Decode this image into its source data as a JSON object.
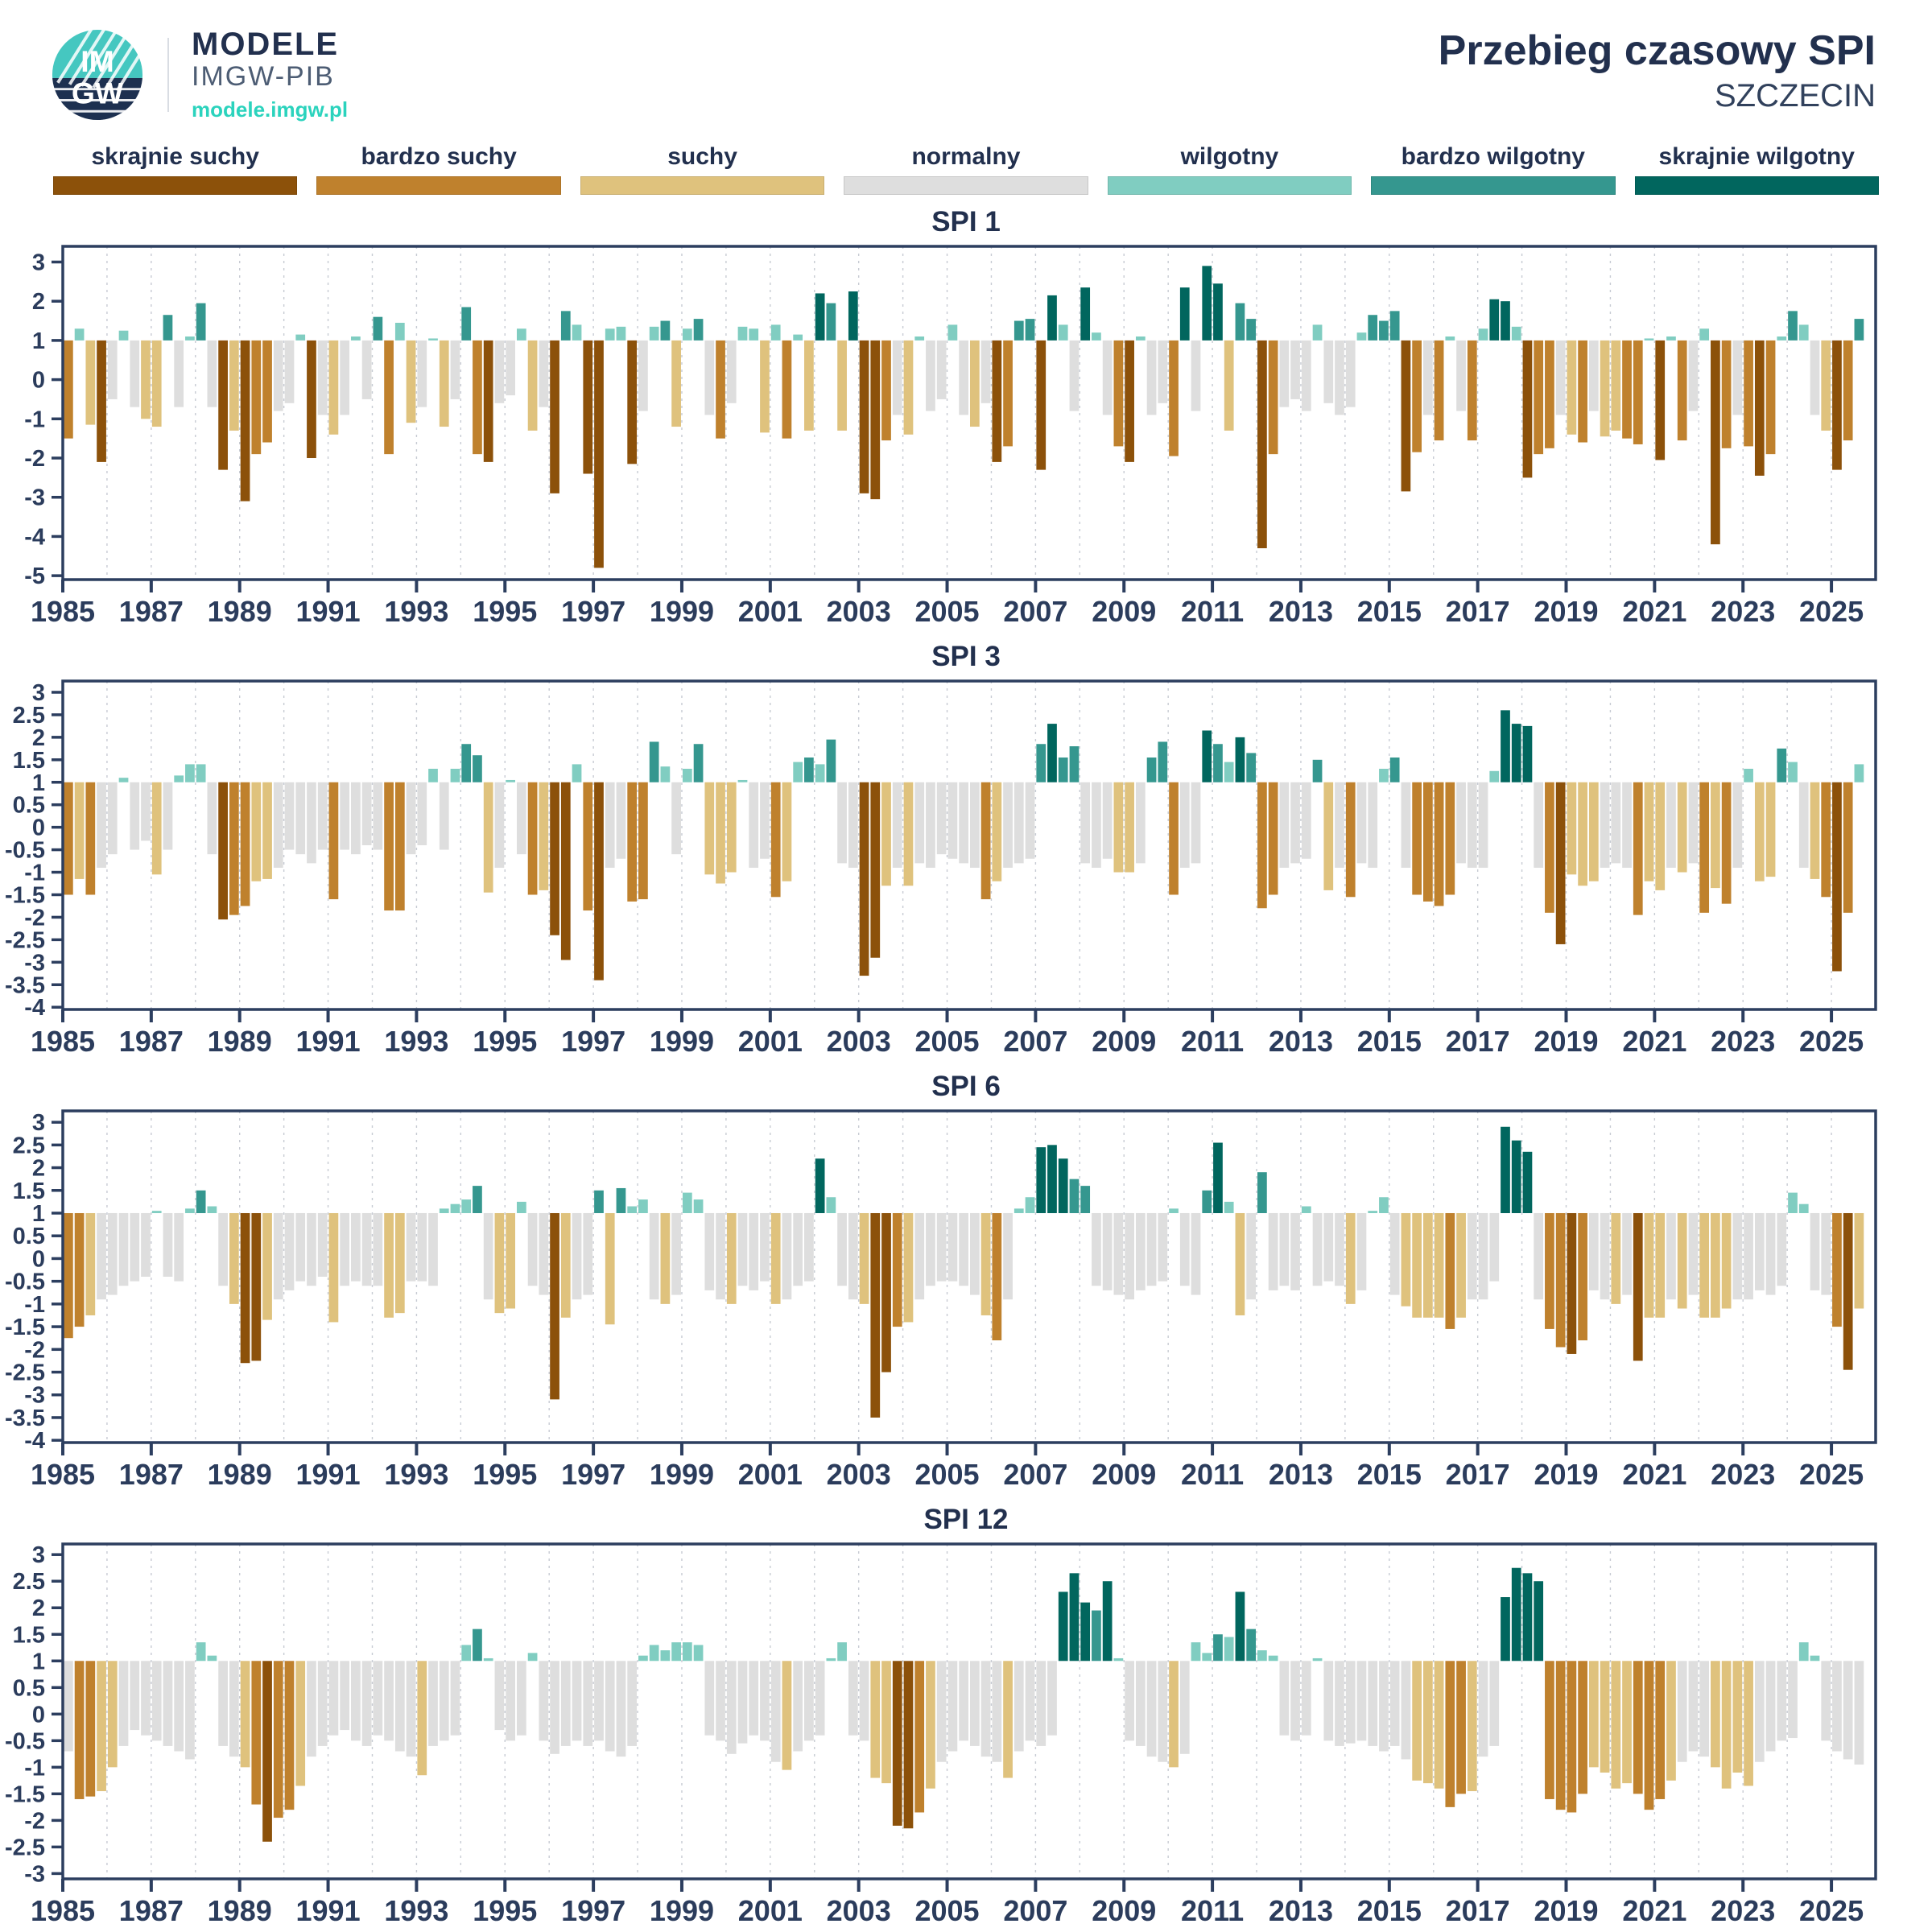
{
  "header": {
    "logo_text_top": "IM",
    "logo_text_bottom": "GW",
    "brand_name": "MODELE",
    "brand_org": "IMGW-PIB",
    "brand_url": "modele.imgw.pl",
    "title": "Przebieg czasowy SPI",
    "subtitle": "SZCZECIN"
  },
  "colors": {
    "navy_text": "#22304e",
    "axis_frame": "#2c3e5f",
    "gridline": "#c7cbd3",
    "brand_teal": "#2bd3bd",
    "logo_top_teal": "#45c7c0",
    "logo_bottom_navy": "#1d3050"
  },
  "legend": [
    {
      "label": "skrajnie suchy",
      "color": "#8c510a",
      "range": [
        -99,
        -2
      ]
    },
    {
      "label": "bardzo suchy",
      "color": "#bf812d",
      "range": [
        -2,
        -1.5
      ]
    },
    {
      "label": "suchy",
      "color": "#dfc27d",
      "range": [
        -1.5,
        -1
      ]
    },
    {
      "label": "normalny",
      "color": "#dedede",
      "range": [
        -1,
        1
      ]
    },
    {
      "label": "wilgotny",
      "color": "#80cdc1",
      "range": [
        1,
        1.5
      ]
    },
    {
      "label": "bardzo wilgotny",
      "color": "#35978f",
      "range": [
        1.5,
        2
      ]
    },
    {
      "label": "skrajnie wilgotny",
      "color": "#01665e",
      "range": [
        2,
        99
      ]
    }
  ],
  "chart_data": {
    "type": "bar",
    "xlabel": "",
    "ylabel": "SPI",
    "x_start": 1985,
    "x_end": 2025.75,
    "x_axis_max": 2026,
    "points_per_year": 4,
    "sampling": "quarterly approximation of monthly bars",
    "baseline": 1,
    "grid": "vertical dashed yearly",
    "legend_position": "top",
    "x_ticks": [
      1985,
      1987,
      1989,
      1991,
      1993,
      1995,
      1997,
      1999,
      2001,
      2003,
      2005,
      2007,
      2009,
      2011,
      2013,
      2015,
      2017,
      2019,
      2021,
      2023,
      2025
    ],
    "charts": [
      {
        "title": "SPI 1",
        "y_ticks": [
          3,
          2,
          1,
          0,
          -1,
          -2,
          -3,
          -4,
          -5
        ],
        "y_top": 3.4,
        "y_bottom": -5.1,
        "values": [
          -1.5,
          1.3,
          -1.15,
          -2.1,
          -0.5,
          1.25,
          -0.7,
          -1.0,
          -1.2,
          1.65,
          -0.7,
          1.1,
          1.95,
          -0.7,
          -2.3,
          -1.3,
          -3.1,
          -1.9,
          -1.6,
          -0.8,
          -0.6,
          1.15,
          -2.0,
          -0.9,
          -1.4,
          -0.9,
          1.1,
          -0.5,
          1.6,
          -1.9,
          1.45,
          -1.1,
          -0.7,
          1.05,
          -1.2,
          -0.5,
          1.85,
          -1.9,
          -2.1,
          -0.6,
          -0.4,
          1.3,
          -1.3,
          -0.7,
          -2.9,
          1.75,
          1.4,
          -2.4,
          -4.8,
          1.3,
          1.35,
          -2.15,
          -0.8,
          1.35,
          1.5,
          -1.2,
          1.3,
          1.55,
          -0.9,
          -1.5,
          -0.6,
          1.35,
          1.3,
          -1.35,
          1.4,
          -1.5,
          1.15,
          -1.3,
          2.2,
          1.95,
          -1.3,
          2.25,
          -2.9,
          -3.05,
          -1.55,
          -0.9,
          -1.4,
          1.1,
          -0.8,
          -0.5,
          1.4,
          -0.9,
          -1.2,
          -0.6,
          -2.1,
          -1.7,
          1.5,
          1.55,
          -2.3,
          2.15,
          1.4,
          -0.8,
          2.35,
          1.2,
          -0.9,
          -1.7,
          -2.1,
          1.1,
          -0.9,
          -0.6,
          -1.95,
          2.35,
          -0.8,
          2.9,
          2.45,
          -1.3,
          1.95,
          1.55,
          -4.3,
          -1.9,
          -0.7,
          -0.5,
          -0.8,
          1.4,
          -0.6,
          -0.9,
          -0.7,
          1.2,
          1.65,
          1.5,
          1.75,
          -2.85,
          -1.85,
          -0.9,
          -1.55,
          1.1,
          -0.8,
          -1.55,
          1.3,
          2.05,
          2.0,
          1.35,
          -2.5,
          -1.9,
          -1.75,
          -0.9,
          -1.4,
          -1.6,
          -0.8,
          -1.45,
          -1.3,
          -1.5,
          -1.65,
          1.05,
          -2.05,
          1.1,
          -1.55,
          -0.8,
          1.3,
          -4.2,
          -1.75,
          -0.9,
          -1.7,
          -2.45,
          -1.9,
          1.1,
          1.75,
          1.4,
          -0.9,
          -1.3,
          -2.3,
          -1.55,
          1.55
        ]
      },
      {
        "title": "SPI 3",
        "y_ticks": [
          3,
          2.5,
          2,
          1.5,
          1,
          0.5,
          0,
          -0.5,
          -1,
          -1.5,
          -2,
          -2.5,
          -3,
          -3.5,
          -4
        ],
        "y_top": 3.25,
        "y_bottom": -4.05,
        "values": [
          -1.5,
          -1.15,
          -1.5,
          -0.9,
          -0.6,
          1.1,
          -0.5,
          -0.3,
          -1.05,
          -0.5,
          1.15,
          1.4,
          1.4,
          -0.6,
          -2.05,
          -1.95,
          -1.75,
          -1.2,
          -1.15,
          -0.9,
          -0.5,
          -0.6,
          -0.8,
          -0.5,
          -1.6,
          -0.5,
          -0.6,
          -0.4,
          -0.5,
          -1.85,
          -1.85,
          -0.6,
          -0.4,
          1.3,
          -0.5,
          1.3,
          1.85,
          1.6,
          -1.45,
          -0.9,
          1.05,
          -0.6,
          -1.5,
          -1.4,
          -2.4,
          -2.95,
          1.4,
          -1.85,
          -3.4,
          -0.9,
          -0.7,
          -1.65,
          -1.6,
          1.9,
          1.35,
          -0.6,
          1.3,
          1.85,
          -1.05,
          -1.25,
          -1.0,
          1.05,
          -0.9,
          -0.7,
          -1.55,
          -1.2,
          1.45,
          1.55,
          1.4,
          1.95,
          -0.8,
          -0.9,
          -3.3,
          -2.9,
          -1.3,
          -0.9,
          -1.3,
          -0.8,
          -0.9,
          -0.6,
          -0.7,
          -0.8,
          -0.9,
          -1.6,
          -1.2,
          -0.9,
          -0.8,
          -0.7,
          1.85,
          2.3,
          1.55,
          1.8,
          -0.8,
          -0.9,
          -0.7,
          -1.0,
          -1.0,
          -0.8,
          1.55,
          1.9,
          -1.5,
          -0.9,
          -0.8,
          2.15,
          1.85,
          1.45,
          2.0,
          1.65,
          -1.8,
          -1.5,
          -0.9,
          -0.8,
          -0.7,
          1.5,
          -1.4,
          -0.9,
          -1.55,
          -0.8,
          -0.9,
          1.3,
          1.55,
          -0.9,
          -1.5,
          -1.65,
          -1.75,
          -1.5,
          -0.8,
          -0.9,
          -0.9,
          1.25,
          2.6,
          2.3,
          2.25,
          -0.9,
          -1.9,
          -2.6,
          -1.05,
          -1.3,
          -1.2,
          -0.9,
          -0.8,
          -0.9,
          -1.95,
          -1.2,
          -1.4,
          -0.9,
          -1.0,
          -0.8,
          -1.9,
          -1.35,
          -1.7,
          -0.9,
          1.3,
          -1.2,
          -1.1,
          1.75,
          1.45,
          -0.9,
          -1.15,
          -1.55,
          -3.2,
          -1.9,
          1.4
        ]
      },
      {
        "title": "SPI 6",
        "y_ticks": [
          3,
          2.5,
          2,
          1.5,
          1,
          0.5,
          0,
          -0.5,
          -1,
          -1.5,
          -2,
          -2.5,
          -3,
          -3.5,
          -4
        ],
        "y_top": 3.25,
        "y_bottom": -4.05,
        "values": [
          -1.75,
          -1.5,
          -1.25,
          -0.9,
          -0.8,
          -0.6,
          -0.5,
          -0.4,
          1.05,
          -0.4,
          -0.5,
          1.1,
          1.5,
          1.15,
          -0.6,
          -1.0,
          -2.3,
          -2.25,
          -1.35,
          -0.9,
          -0.7,
          -0.5,
          -0.6,
          -0.4,
          -1.4,
          -0.6,
          -0.5,
          -0.6,
          -0.6,
          -1.3,
          -1.2,
          -0.5,
          -0.5,
          -0.6,
          1.1,
          1.2,
          1.3,
          1.6,
          -0.9,
          -1.2,
          -1.1,
          1.25,
          -0.6,
          -0.8,
          -3.1,
          -1.3,
          -0.9,
          -0.8,
          1.5,
          -1.45,
          1.55,
          1.15,
          1.3,
          -0.9,
          -1.0,
          -0.8,
          1.45,
          1.3,
          -0.7,
          -0.9,
          -1.0,
          -0.6,
          -0.7,
          -0.5,
          -1.0,
          -0.9,
          -0.6,
          -0.5,
          2.2,
          1.35,
          -0.6,
          -0.9,
          -1.0,
          -3.5,
          -2.5,
          -1.5,
          -1.4,
          -0.9,
          -0.6,
          -0.5,
          -0.5,
          -0.6,
          -0.8,
          -1.25,
          -1.8,
          -0.9,
          1.1,
          1.35,
          2.45,
          2.5,
          2.2,
          1.75,
          1.6,
          -0.6,
          -0.7,
          -0.8,
          -0.9,
          -0.7,
          -0.6,
          -0.5,
          1.1,
          -0.6,
          -0.8,
          1.5,
          2.55,
          1.25,
          -1.25,
          -0.9,
          1.9,
          -0.7,
          -0.6,
          -0.7,
          1.15,
          -0.6,
          -0.5,
          -0.6,
          -1.0,
          -0.7,
          1.05,
          1.35,
          -0.8,
          -1.05,
          -1.3,
          -1.3,
          -1.3,
          -1.55,
          -1.3,
          -0.9,
          -0.9,
          -0.5,
          2.9,
          2.6,
          2.35,
          -0.9,
          -1.55,
          -1.95,
          -2.1,
          -1.8,
          -0.7,
          -0.9,
          -1.0,
          -0.8,
          -2.25,
          -1.3,
          -1.3,
          -0.9,
          -1.1,
          -0.8,
          -1.3,
          -1.3,
          -1.1,
          -0.9,
          -0.9,
          -0.7,
          -0.8,
          -0.6,
          1.45,
          1.2,
          -0.7,
          -0.8,
          -1.5,
          -2.45,
          -1.1
        ]
      },
      {
        "title": "SPI 12",
        "y_ticks": [
          3,
          2.5,
          2,
          1.5,
          1,
          0.5,
          0,
          -0.5,
          -1,
          -1.5,
          -2,
          -2.5,
          -3
        ],
        "y_top": 3.2,
        "y_bottom": -3.1,
        "values": [
          -0.7,
          -1.6,
          -1.55,
          -1.45,
          -1.0,
          -0.6,
          -0.3,
          -0.4,
          -0.5,
          -0.6,
          -0.7,
          -0.85,
          1.35,
          1.1,
          -0.6,
          -0.8,
          -1.0,
          -1.7,
          -2.4,
          -1.95,
          -1.8,
          -1.35,
          -0.8,
          -0.6,
          -0.4,
          -0.3,
          -0.5,
          -0.6,
          -0.4,
          -0.5,
          -0.7,
          -0.8,
          -1.15,
          -0.6,
          -0.5,
          -0.4,
          1.3,
          1.6,
          1.05,
          -0.3,
          -0.5,
          -0.4,
          1.15,
          -0.5,
          -0.75,
          -0.6,
          -0.5,
          -0.6,
          -0.5,
          -0.7,
          -0.8,
          -0.6,
          1.1,
          1.3,
          1.2,
          1.35,
          1.35,
          1.3,
          -0.4,
          -0.5,
          -0.75,
          -0.55,
          -0.4,
          -0.5,
          -0.9,
          -1.05,
          -0.7,
          -0.5,
          -0.4,
          1.05,
          1.35,
          -0.4,
          -0.5,
          -1.2,
          -1.3,
          -2.1,
          -2.15,
          -1.85,
          -1.4,
          -0.9,
          -0.7,
          -0.5,
          -0.6,
          -0.8,
          -0.9,
          -1.2,
          -0.7,
          -0.5,
          -0.6,
          -0.4,
          2.3,
          2.65,
          2.1,
          1.95,
          2.5,
          1.05,
          -0.5,
          -0.6,
          -0.8,
          -0.9,
          -1.0,
          -0.75,
          1.35,
          1.15,
          1.5,
          1.45,
          2.3,
          1.6,
          1.2,
          1.1,
          -0.4,
          -0.5,
          -0.4,
          1.05,
          -0.5,
          -0.6,
          -0.55,
          -0.5,
          -0.6,
          -0.7,
          -0.6,
          -0.85,
          -1.25,
          -1.3,
          -1.4,
          -1.75,
          -1.5,
          -1.45,
          -0.8,
          -0.6,
          2.2,
          2.75,
          2.65,
          2.5,
          -1.6,
          -1.8,
          -1.85,
          -1.5,
          -1.0,
          -1.1,
          -1.4,
          -1.3,
          -1.5,
          -1.8,
          -1.6,
          -1.25,
          -0.9,
          -0.7,
          -0.8,
          -1.0,
          -1.4,
          -1.1,
          -1.35,
          -0.9,
          -0.7,
          -0.5,
          -0.45,
          1.35,
          1.1,
          -0.5,
          -0.7,
          -0.85,
          -0.95
        ]
      }
    ]
  }
}
